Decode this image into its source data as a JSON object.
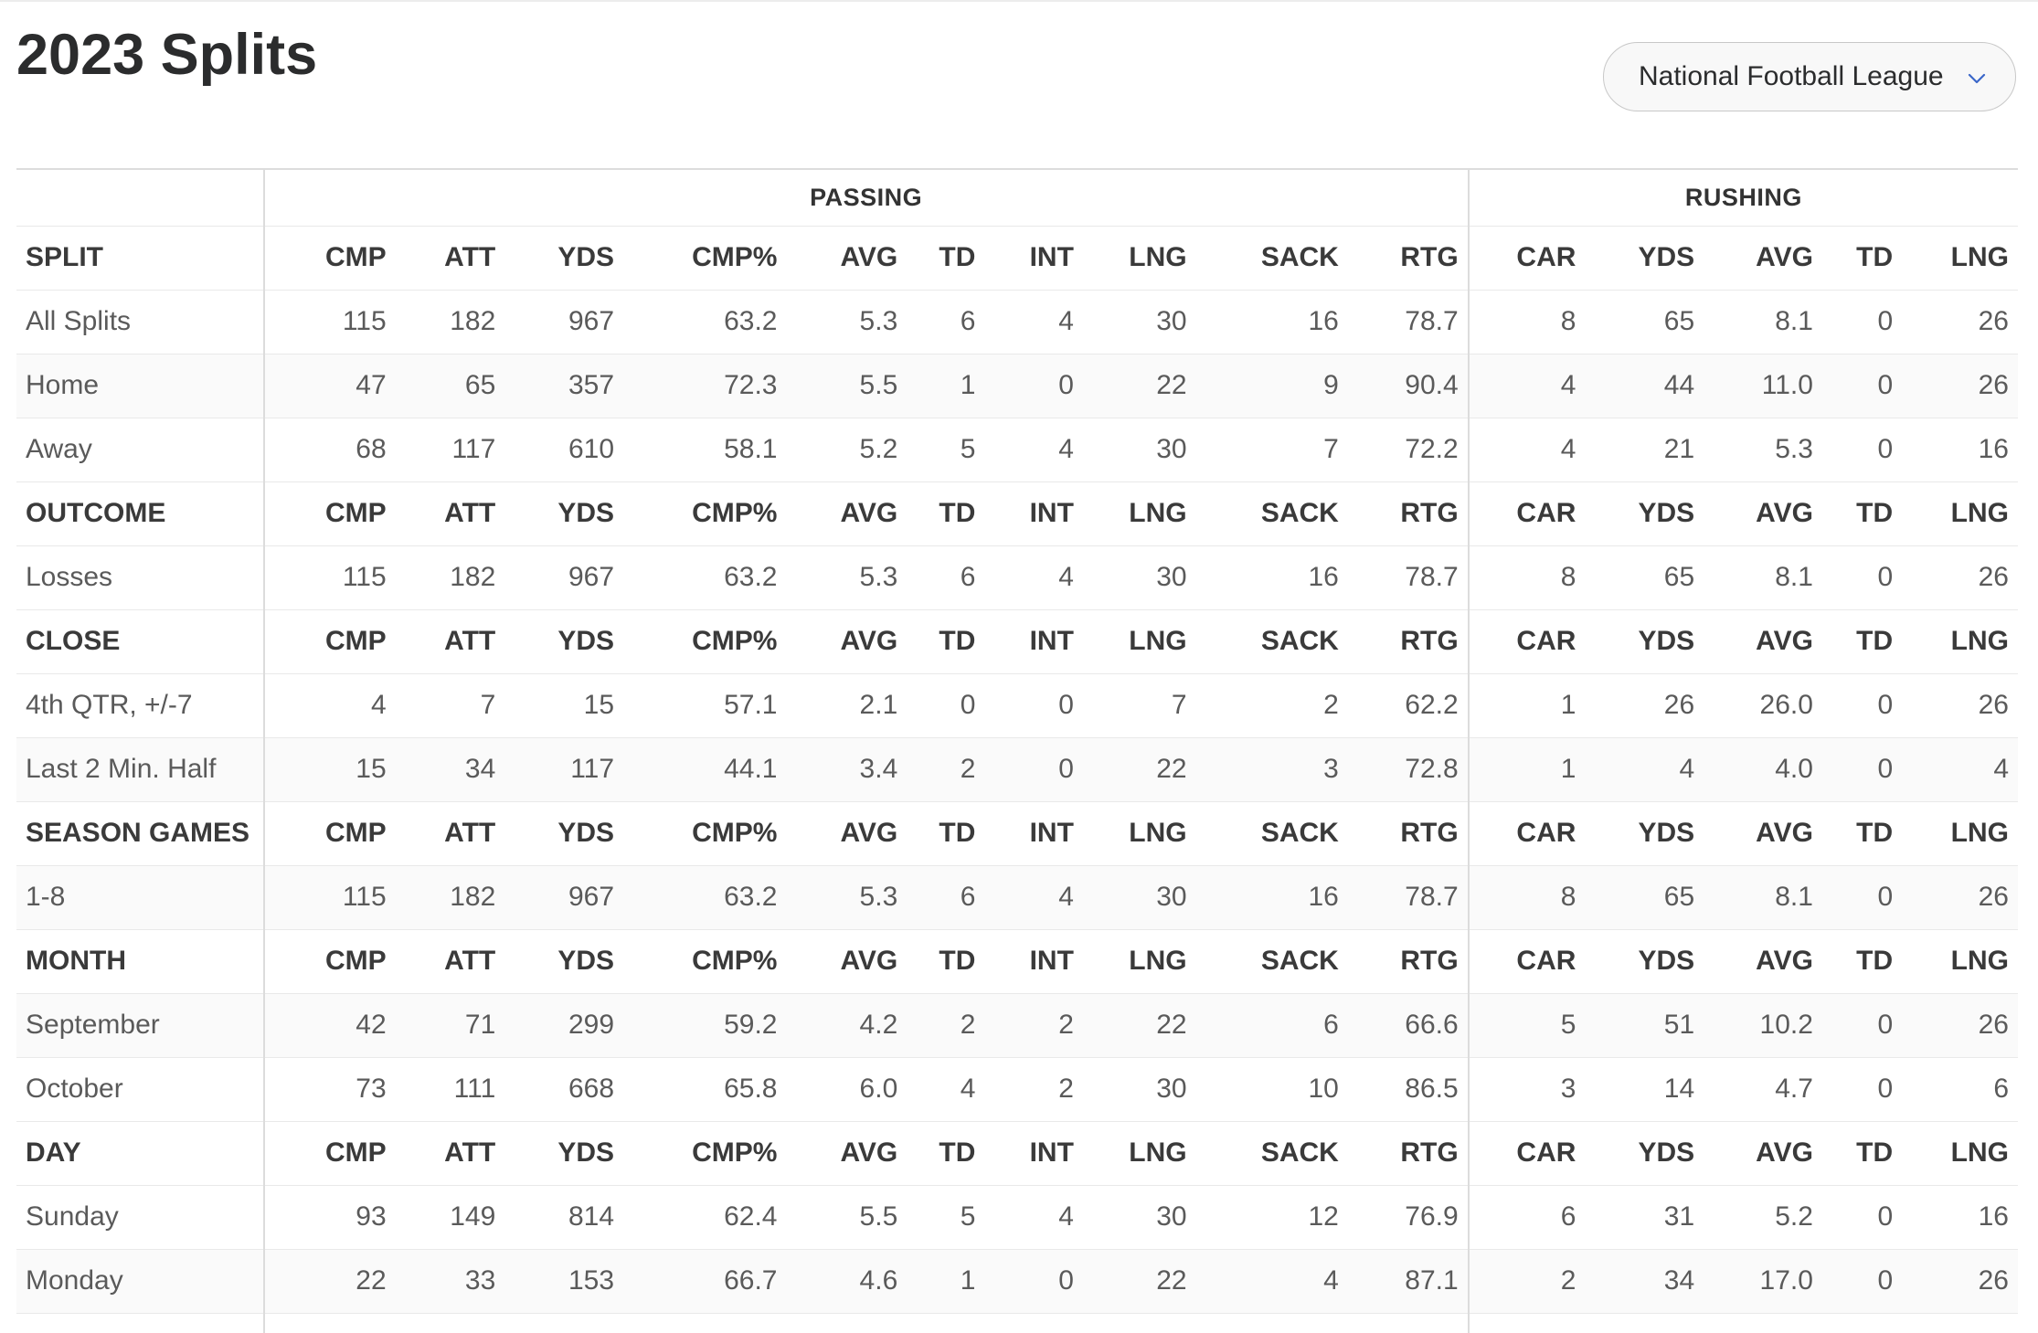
{
  "page": {
    "title": "2023 Splits"
  },
  "league_select": {
    "selected": "National Football League",
    "icon": "chevron-down-icon"
  },
  "table": {
    "groups": {
      "passing": "PASSING",
      "rushing": "RUSHING"
    },
    "columns": [
      "CMP",
      "ATT",
      "YDS",
      "CMP%",
      "AVG",
      "TD",
      "INT",
      "LNG",
      "SACK",
      "RTG",
      "CAR",
      "YDS",
      "AVG",
      "TD",
      "LNG"
    ],
    "sections": [
      {
        "title": "SPLIT",
        "rows": [
          {
            "label": "All Splits",
            "values": [
              "115",
              "182",
              "967",
              "63.2",
              "5.3",
              "6",
              "4",
              "30",
              "16",
              "78.7",
              "8",
              "65",
              "8.1",
              "0",
              "26"
            ]
          },
          {
            "label": "Home",
            "values": [
              "47",
              "65",
              "357",
              "72.3",
              "5.5",
              "1",
              "0",
              "22",
              "9",
              "90.4",
              "4",
              "44",
              "11.0",
              "0",
              "26"
            ]
          },
          {
            "label": "Away",
            "values": [
              "68",
              "117",
              "610",
              "58.1",
              "5.2",
              "5",
              "4",
              "30",
              "7",
              "72.2",
              "4",
              "21",
              "5.3",
              "0",
              "16"
            ]
          }
        ]
      },
      {
        "title": "OUTCOME",
        "rows": [
          {
            "label": "Losses",
            "values": [
              "115",
              "182",
              "967",
              "63.2",
              "5.3",
              "6",
              "4",
              "30",
              "16",
              "78.7",
              "8",
              "65",
              "8.1",
              "0",
              "26"
            ]
          }
        ]
      },
      {
        "title": "CLOSE",
        "rows": [
          {
            "label": "4th QTR, +/-7",
            "values": [
              "4",
              "7",
              "15",
              "57.1",
              "2.1",
              "0",
              "0",
              "7",
              "2",
              "62.2",
              "1",
              "26",
              "26.0",
              "0",
              "26"
            ]
          },
          {
            "label": "Last 2 Min. Half",
            "values": [
              "15",
              "34",
              "117",
              "44.1",
              "3.4",
              "2",
              "0",
              "22",
              "3",
              "72.8",
              "1",
              "4",
              "4.0",
              "0",
              "4"
            ]
          }
        ]
      },
      {
        "title": "SEASON GAMES",
        "rows": [
          {
            "label": "1-8",
            "values": [
              "115",
              "182",
              "967",
              "63.2",
              "5.3",
              "6",
              "4",
              "30",
              "16",
              "78.7",
              "8",
              "65",
              "8.1",
              "0",
              "26"
            ]
          }
        ]
      },
      {
        "title": "MONTH",
        "rows": [
          {
            "label": "September",
            "values": [
              "42",
              "71",
              "299",
              "59.2",
              "4.2",
              "2",
              "2",
              "22",
              "6",
              "66.6",
              "5",
              "51",
              "10.2",
              "0",
              "26"
            ]
          },
          {
            "label": "October",
            "values": [
              "73",
              "111",
              "668",
              "65.8",
              "6.0",
              "4",
              "2",
              "30",
              "10",
              "86.5",
              "3",
              "14",
              "4.7",
              "0",
              "6"
            ]
          }
        ]
      },
      {
        "title": "DAY",
        "rows": [
          {
            "label": "Sunday",
            "values": [
              "93",
              "149",
              "814",
              "62.4",
              "5.5",
              "5",
              "4",
              "30",
              "12",
              "76.9",
              "6",
              "31",
              "5.2",
              "0",
              "16"
            ]
          },
          {
            "label": "Monday",
            "values": [
              "22",
              "33",
              "153",
              "66.7",
              "4.6",
              "1",
              "0",
              "22",
              "4",
              "87.1",
              "2",
              "34",
              "17.0",
              "0",
              "26"
            ]
          }
        ]
      }
    ]
  }
}
